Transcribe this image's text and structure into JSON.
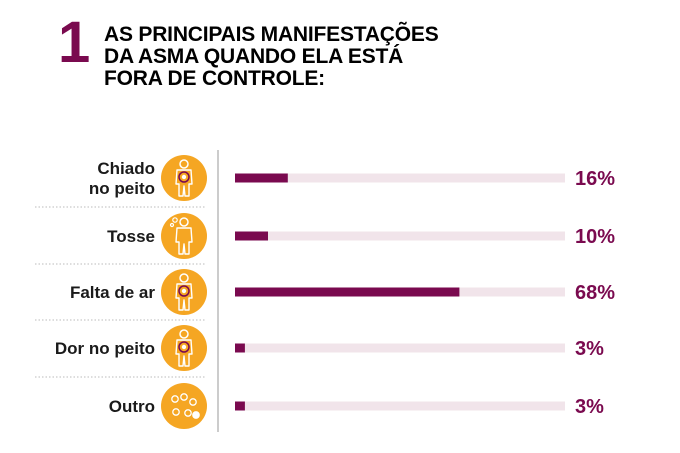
{
  "header": {
    "number": "1",
    "title_lines": [
      "AS PRINCIPAIS MANIFESTAÇÕES",
      "DA ASMA QUANDO ELA ESTÁ",
      "FORA DE CONTROLE:"
    ]
  },
  "colors": {
    "accent": "#7a0a4f",
    "track": "#f1e4ea",
    "icon_fill": "#f5a623",
    "separator": "#bbbbbb"
  },
  "chart_data": {
    "type": "bar",
    "orientation": "horizontal",
    "title": "AS PRINCIPAIS MANIFESTAÇÕES DA ASMA QUANDO ELA ESTÁ FORA DE CONTROLE:",
    "unit": "%",
    "xlim": [
      0,
      100
    ],
    "categories": [
      {
        "lines": [
          "Chiado",
          "no peito"
        ],
        "icon": "person-chest-icon"
      },
      {
        "lines": [
          "Tosse"
        ],
        "icon": "person-cough-icon"
      },
      {
        "lines": [
          "Falta de ar"
        ],
        "icon": "person-lungs-icon"
      },
      {
        "lines": [
          "Dor no peito"
        ],
        "icon": "person-chest-pain-icon"
      },
      {
        "lines": [
          "Outro"
        ],
        "icon": "dots-icon"
      }
    ],
    "values": [
      16,
      10,
      68,
      3,
      3
    ],
    "value_labels": [
      "16%",
      "10%",
      "68%",
      "3%",
      "3%"
    ]
  }
}
